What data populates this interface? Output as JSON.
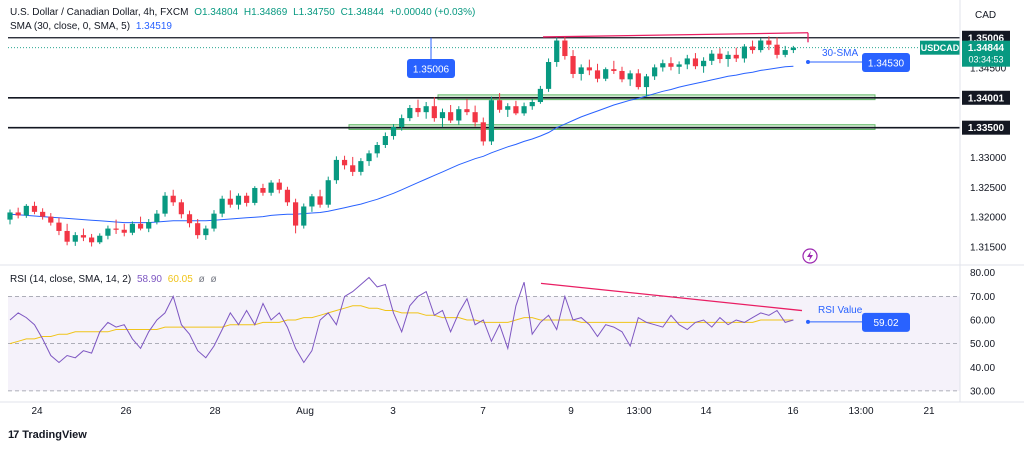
{
  "header": {
    "symbol_title": "U.S. Dollar / Canadian Dollar, 4h, FXCM",
    "open": "O1.34804",
    "high": "H1.34869",
    "low": "L1.34750",
    "close": "C1.34844",
    "change": "+0.00040 (+0.03%)",
    "sma_label": "SMA (30, close, 0, SMA, 5)",
    "sma_value": "1.34519",
    "rsi_label": "RSI (14, close, SMA, 14, 2)",
    "rsi_value": "58.90",
    "rsi_sma_value": "60.05",
    "rsi_extra1": "ø",
    "rsi_extra2": "ø"
  },
  "branding": {
    "logo_text": "TradingView"
  },
  "colors": {
    "up": "#089981",
    "down": "#f23645",
    "sma": "#2962ff",
    "rsi": "#7e57c2",
    "rsi_sma": "#f0c419",
    "divergence": "#e91e63",
    "zone_fill": "#c8e6c9",
    "zone_border": "#4caf50",
    "label_blue": "#2962ff",
    "dark_label": "#131722"
  },
  "chart_data": [
    {
      "type": "candlestick",
      "title": "U.S. Dollar / Canadian Dollar, 4h, FXCM",
      "currency": "CAD",
      "y_ticks": [
        1.315,
        1.32,
        1.325,
        1.33,
        1.335,
        1.34,
        1.345,
        1.35
      ],
      "y_tick_labels": [
        "1.31500",
        "1.32000",
        "1.32500",
        "1.33000",
        "1.33500",
        "1.34001",
        "1.34500",
        "1.35006"
      ],
      "ylim": [
        1.3125,
        1.3522
      ],
      "x_labels": [
        "24",
        "26",
        "28",
        "Aug",
        "3",
        "7",
        "9",
        "13:00",
        "14",
        "16",
        "13:00",
        "21"
      ],
      "candles": [
        [
          1.3196,
          1.3213,
          1.3188,
          1.3208
        ],
        [
          1.3208,
          1.3216,
          1.3198,
          1.3203
        ],
        [
          1.3203,
          1.3222,
          1.3199,
          1.3219
        ],
        [
          1.3219,
          1.3226,
          1.3205,
          1.3209
        ],
        [
          1.3209,
          1.3215,
          1.3196,
          1.3201
        ],
        [
          1.3201,
          1.3207,
          1.3186,
          1.3191
        ],
        [
          1.3191,
          1.3199,
          1.317,
          1.3177
        ],
        [
          1.3177,
          1.3189,
          1.3153,
          1.3159
        ],
        [
          1.3159,
          1.3175,
          1.3152,
          1.317
        ],
        [
          1.317,
          1.3181,
          1.316,
          1.3166
        ],
        [
          1.3166,
          1.3172,
          1.3151,
          1.3158
        ],
        [
          1.3158,
          1.3173,
          1.3155,
          1.3169
        ],
        [
          1.3169,
          1.3186,
          1.3163,
          1.3181
        ],
        [
          1.3181,
          1.3196,
          1.3172,
          1.3179
        ],
        [
          1.3179,
          1.3189,
          1.3168,
          1.3174
        ],
        [
          1.3174,
          1.3193,
          1.317,
          1.3189
        ],
        [
          1.3189,
          1.3201,
          1.3178,
          1.3181
        ],
        [
          1.3181,
          1.3197,
          1.3175,
          1.3192
        ],
        [
          1.3192,
          1.3212,
          1.3188,
          1.3206
        ],
        [
          1.3206,
          1.3242,
          1.3201,
          1.3236
        ],
        [
          1.3236,
          1.3246,
          1.3219,
          1.3225
        ],
        [
          1.3225,
          1.323,
          1.3198,
          1.3205
        ],
        [
          1.3205,
          1.3211,
          1.3183,
          1.319
        ],
        [
          1.319,
          1.3197,
          1.3164,
          1.317
        ],
        [
          1.317,
          1.3186,
          1.3162,
          1.3181
        ],
        [
          1.3181,
          1.3212,
          1.3176,
          1.3206
        ],
        [
          1.3206,
          1.3236,
          1.32,
          1.3231
        ],
        [
          1.3231,
          1.3245,
          1.3216,
          1.3221
        ],
        [
          1.3221,
          1.324,
          1.3213,
          1.3236
        ],
        [
          1.3236,
          1.3241,
          1.3218,
          1.3224
        ],
        [
          1.3224,
          1.3252,
          1.322,
          1.3249
        ],
        [
          1.3249,
          1.3256,
          1.3236,
          1.3241
        ],
        [
          1.3241,
          1.3262,
          1.3236,
          1.3258
        ],
        [
          1.3258,
          1.3264,
          1.324,
          1.3246
        ],
        [
          1.3246,
          1.3251,
          1.3219,
          1.3225
        ],
        [
          1.3225,
          1.3231,
          1.3173,
          1.3186
        ],
        [
          1.3186,
          1.3223,
          1.3181,
          1.3218
        ],
        [
          1.3218,
          1.3239,
          1.3209,
          1.3235
        ],
        [
          1.3235,
          1.3246,
          1.3216,
          1.3221
        ],
        [
          1.3221,
          1.3268,
          1.3216,
          1.3262
        ],
        [
          1.3262,
          1.3302,
          1.3256,
          1.3296
        ],
        [
          1.3296,
          1.3303,
          1.328,
          1.3287
        ],
        [
          1.3287,
          1.3301,
          1.3269,
          1.3276
        ],
        [
          1.3276,
          1.3299,
          1.327,
          1.3294
        ],
        [
          1.3294,
          1.3312,
          1.3286,
          1.3307
        ],
        [
          1.3307,
          1.3326,
          1.33,
          1.3321
        ],
        [
          1.3321,
          1.3342,
          1.3316,
          1.3336
        ],
        [
          1.3336,
          1.3356,
          1.333,
          1.3351
        ],
        [
          1.3351,
          1.3372,
          1.3345,
          1.3366
        ],
        [
          1.3366,
          1.3388,
          1.3361,
          1.3383
        ],
        [
          1.3383,
          1.3397,
          1.3368,
          1.3376
        ],
        [
          1.3376,
          1.3393,
          1.3365,
          1.3386
        ],
        [
          1.3386,
          1.3401,
          1.336,
          1.3366
        ],
        [
          1.3366,
          1.3382,
          1.3351,
          1.3376
        ],
        [
          1.3376,
          1.3388,
          1.3358,
          1.3362
        ],
        [
          1.3362,
          1.3386,
          1.3355,
          1.3381
        ],
        [
          1.3381,
          1.3398,
          1.3371,
          1.3376
        ],
        [
          1.3376,
          1.3387,
          1.3352,
          1.3359
        ],
        [
          1.3359,
          1.3367,
          1.332,
          1.3327
        ],
        [
          1.3327,
          1.3402,
          1.3321,
          1.3396
        ],
        [
          1.3396,
          1.3408,
          1.3375,
          1.338
        ],
        [
          1.338,
          1.3391,
          1.3368,
          1.3386
        ],
        [
          1.3386,
          1.3395,
          1.3371,
          1.3374
        ],
        [
          1.3374,
          1.3392,
          1.337,
          1.3386
        ],
        [
          1.3386,
          1.3398,
          1.338,
          1.3393
        ],
        [
          1.3393,
          1.342,
          1.339,
          1.3415
        ],
        [
          1.3415,
          1.3466,
          1.341,
          1.346
        ],
        [
          1.346,
          1.3501,
          1.3452,
          1.3496
        ],
        [
          1.3496,
          1.3502,
          1.3464,
          1.347
        ],
        [
          1.347,
          1.348,
          1.3433,
          1.344
        ],
        [
          1.344,
          1.3456,
          1.3429,
          1.3451
        ],
        [
          1.3451,
          1.3464,
          1.3438,
          1.3446
        ],
        [
          1.3446,
          1.3457,
          1.3426,
          1.3432
        ],
        [
          1.3432,
          1.3451,
          1.3428,
          1.3448
        ],
        [
          1.3448,
          1.3462,
          1.344,
          1.3445
        ],
        [
          1.3445,
          1.3452,
          1.3426,
          1.3431
        ],
        [
          1.3431,
          1.3446,
          1.342,
          1.3441
        ],
        [
          1.3441,
          1.3448,
          1.3414,
          1.3418
        ],
        [
          1.3418,
          1.344,
          1.3402,
          1.3436
        ],
        [
          1.3436,
          1.3456,
          1.343,
          1.3451
        ],
        [
          1.3451,
          1.3464,
          1.3444,
          1.3458
        ],
        [
          1.3458,
          1.3468,
          1.3446,
          1.3452
        ],
        [
          1.3452,
          1.3461,
          1.344,
          1.3456
        ],
        [
          1.3456,
          1.3472,
          1.3448,
          1.3466
        ],
        [
          1.3466,
          1.3475,
          1.3448,
          1.3453
        ],
        [
          1.3453,
          1.3468,
          1.3442,
          1.3462
        ],
        [
          1.3462,
          1.348,
          1.3455,
          1.3474
        ],
        [
          1.3474,
          1.3483,
          1.3458,
          1.3465
        ],
        [
          1.3465,
          1.3478,
          1.3452,
          1.3472
        ],
        [
          1.3472,
          1.3484,
          1.346,
          1.3466
        ],
        [
          1.3466,
          1.349,
          1.3459,
          1.3486
        ],
        [
          1.3486,
          1.3496,
          1.3474,
          1.348
        ],
        [
          1.348,
          1.35,
          1.3476,
          1.3496
        ],
        [
          1.3496,
          1.3503,
          1.348,
          1.3489
        ],
        [
          1.3489,
          1.3501,
          1.3466,
          1.3472
        ],
        [
          1.3472,
          1.3487,
          1.3468,
          1.348
        ],
        [
          1.348,
          1.3487,
          1.3475,
          1.3484
        ]
      ],
      "sma_30": [
        1.3205,
        1.3204,
        1.3203,
        1.3202,
        1.3201,
        1.32,
        1.3199,
        1.3198,
        1.3197,
        1.3196,
        1.3195,
        1.3194,
        1.3193,
        1.3192,
        1.3191,
        1.3191,
        1.3191,
        1.3191,
        1.3192,
        1.3193,
        1.3194,
        1.3194,
        1.3194,
        1.3194,
        1.3194,
        1.3195,
        1.3196,
        1.3197,
        1.3198,
        1.3199,
        1.32,
        1.3201,
        1.3203,
        1.3204,
        1.3205,
        1.3205,
        1.3206,
        1.3207,
        1.3208,
        1.321,
        1.3213,
        1.3216,
        1.3219,
        1.3222,
        1.3226,
        1.323,
        1.3235,
        1.324,
        1.3246,
        1.3252,
        1.3258,
        1.3264,
        1.327,
        1.3276,
        1.3282,
        1.3288,
        1.3293,
        1.3298,
        1.3302,
        1.3308,
        1.3313,
        1.3318,
        1.3322,
        1.3327,
        1.3331,
        1.3336,
        1.3342,
        1.335,
        1.3356,
        1.3362,
        1.3368,
        1.3373,
        1.3378,
        1.3383,
        1.3388,
        1.3392,
        1.3396,
        1.3399,
        1.3403,
        1.3407,
        1.3411,
        1.3414,
        1.3418,
        1.3421,
        1.3424,
        1.3427,
        1.343,
        1.3433,
        1.3436,
        1.3438,
        1.3441,
        1.3443,
        1.3446,
        1.3448,
        1.345,
        1.3452,
        1.3453
      ],
      "horizontal_levels": [
        1.35006,
        1.34001,
        1.335
      ],
      "support_zones": [
        [
          1.3397,
          1.3405
        ],
        [
          1.3347,
          1.3355
        ]
      ],
      "annotations": {
        "marker_label": "1.35006",
        "sma_label": "30-SMA",
        "sma_value_label": "1.34530",
        "price_tag_symbol": "USDCAD",
        "price_tag_value": "1.34844",
        "price_tag_time": "03:34:53",
        "level_labels": [
          "1.35006",
          "1.34001",
          "1.33500"
        ]
      }
    },
    {
      "type": "line",
      "title": "RSI (14, close, SMA, 14, 2)",
      "y_ticks": [
        30,
        40,
        50,
        60,
        70,
        80
      ],
      "y_tick_labels": [
        "30.00",
        "40.00",
        "50.00",
        "60.00",
        "70.00",
        "80.00"
      ],
      "ylim": [
        27,
        82
      ],
      "band": [
        30,
        70
      ],
      "midline": 50,
      "rsi": [
        60,
        63,
        61,
        58,
        52,
        45,
        42,
        45,
        44,
        47,
        46,
        55,
        59,
        57,
        58,
        52,
        48,
        55,
        60,
        63,
        70,
        58,
        54,
        47,
        44,
        49,
        56,
        63,
        58,
        64,
        58,
        67,
        60,
        63,
        57,
        48,
        42,
        47,
        60,
        63,
        58,
        70,
        72,
        75,
        78,
        74,
        75,
        63,
        55,
        66,
        70,
        72,
        62,
        64,
        55,
        63,
        69,
        58,
        60,
        51,
        58,
        48,
        66,
        76,
        54,
        59,
        62,
        56,
        70,
        60,
        61,
        58,
        53,
        58,
        57,
        55,
        49,
        61,
        59,
        58,
        57,
        62,
        58,
        56,
        59,
        60,
        57,
        61,
        58,
        60,
        59,
        61,
        63,
        62,
        64,
        59,
        60
      ],
      "rsi_sma": [
        50,
        51,
        52,
        52,
        53,
        53,
        54,
        54,
        55,
        55,
        55,
        55,
        55,
        56,
        56,
        56,
        56,
        56,
        56,
        57,
        57,
        57,
        57,
        57,
        57,
        57,
        57,
        58,
        58,
        58,
        58,
        59,
        59,
        59,
        60,
        60,
        61,
        61,
        62,
        63,
        64,
        65,
        66,
        66,
        65,
        65,
        64,
        64,
        63,
        63,
        63,
        62,
        62,
        61,
        61,
        61,
        60,
        60,
        59,
        59,
        59,
        59,
        60,
        61,
        61,
        60,
        60,
        60,
        60,
        60,
        59,
        59,
        59,
        59,
        59,
        59,
        59,
        59,
        59,
        59,
        59,
        59,
        59,
        59,
        59,
        59,
        59,
        59,
        59,
        59,
        59,
        59,
        60,
        60,
        60,
        60,
        60
      ],
      "annotations": {
        "rsi_label": "RSI Value",
        "rsi_value_label": "59.02"
      }
    }
  ]
}
